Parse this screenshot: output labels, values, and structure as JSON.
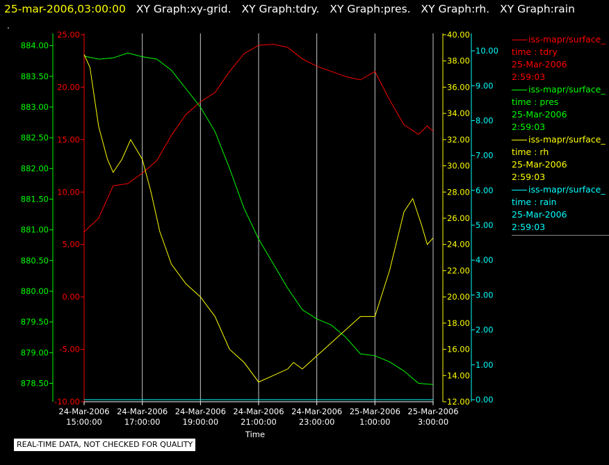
{
  "header": {
    "timestamp": "25-mar-2006,03:00:00",
    "titles": [
      "XY Graph:xy-grid.",
      "XY Graph:tdry.",
      "XY Graph:pres.",
      "XY Graph:rh.",
      "XY Graph:rain"
    ]
  },
  "marker_text": ".",
  "notice": "REAL-TIME DATA, NOT CHECKED FOR QUALITY",
  "legend": [
    {
      "line1": "iss-mapr/surface_",
      "line2": "time : tdry",
      "line3": "25-Mar-2006",
      "line4": "2:59:03",
      "color": "#ff0000"
    },
    {
      "line1": "iss-mapr/surface_",
      "line2": "time : pres",
      "line3": "25-Mar-2006",
      "line4": "2:59:03",
      "color": "#00ff00"
    },
    {
      "line1": "iss-mapr/surface_",
      "line2": "time : rh",
      "line3": "25-Mar-2006",
      "line4": "2:59:03",
      "color": "#ffff00"
    },
    {
      "line1": "iss-mapr/surface_",
      "line2": "time : rain",
      "line3": "25-Mar-2006",
      "line4": "2:59:03",
      "color": "#00ffff"
    }
  ],
  "chart_data": {
    "type": "line",
    "xlabel": "Time",
    "x_range_hours": [
      15,
      27
    ],
    "x_ticks": [
      {
        "hour": 15,
        "date": "24-Mar-2006",
        "time": "15:00:00"
      },
      {
        "hour": 17,
        "date": "24-Mar-2006",
        "time": "17:00:00"
      },
      {
        "hour": 19,
        "date": "24-Mar-2006",
        "time": "19:00:00"
      },
      {
        "hour": 21,
        "date": "24-Mar-2006",
        "time": "21:00:00"
      },
      {
        "hour": 23,
        "date": "24-Mar-2006",
        "time": "23:00:00"
      },
      {
        "hour": 25,
        "date": "25-Mar-2006",
        "time": "1:00:00"
      },
      {
        "hour": 27,
        "date": "25-Mar-2006",
        "time": "3:00:00"
      }
    ],
    "grid": "vertical",
    "axes": {
      "tdry": {
        "color": "#ff0000",
        "range": [
          -10,
          25
        ],
        "ticks": [
          "-10.00",
          "-5.00",
          "0.00",
          "5.00",
          "10.00",
          "15.00",
          "20.00",
          "25.00"
        ]
      },
      "pres": {
        "color": "#00ff00",
        "range": [
          878.2,
          884.2
        ],
        "ticks": [
          "878.50",
          "879.00",
          "879.50",
          "880.00",
          "880.50",
          "881.00",
          "881.50",
          "882.00",
          "882.50",
          "883.00",
          "883.50",
          "884.00"
        ]
      },
      "rh": {
        "color": "#ffff00",
        "range": [
          12,
          40
        ],
        "ticks": [
          "12.00",
          "14.00",
          "16.00",
          "18.00",
          "20.00",
          "22.00",
          "24.00",
          "26.00",
          "28.00",
          "30.00",
          "32.00",
          "34.00",
          "36.00",
          "38.00",
          "40.00"
        ]
      },
      "rain": {
        "color": "#00ffff",
        "range": [
          0,
          10.5
        ],
        "ticks": [
          "0.00",
          "1.00",
          "2.00",
          "3.00",
          "4.00",
          "5.00",
          "6.00",
          "7.00",
          "8.00",
          "9.00",
          "10.00"
        ]
      }
    },
    "series": [
      {
        "name": "tdry",
        "axis": "tdry",
        "color": "#ff0000",
        "x": [
          15,
          15.5,
          16,
          16.5,
          17,
          17.5,
          18,
          18.5,
          19,
          19.5,
          20,
          20.5,
          21,
          21.5,
          22,
          22.5,
          23,
          23.5,
          24,
          24.5,
          25,
          25.5,
          26,
          26.5,
          26.8,
          27
        ],
        "y": [
          6.2,
          7.5,
          10.6,
          10.8,
          11.8,
          13,
          15.4,
          17.4,
          18.6,
          19.5,
          21.5,
          23.2,
          24,
          24.1,
          23.8,
          22.7,
          22,
          21.5,
          21,
          20.7,
          21.5,
          18.8,
          16.4,
          15.5,
          16.3,
          15.8
        ]
      },
      {
        "name": "pres",
        "axis": "pres",
        "color": "#00ff00",
        "x": [
          15,
          15.5,
          16,
          16.5,
          17,
          17.5,
          18,
          18.5,
          19,
          19.5,
          20,
          20.5,
          21,
          21.5,
          22,
          22.5,
          23,
          23.5,
          24,
          24.5,
          25,
          25.5,
          26,
          26.5,
          27
        ],
        "y": [
          883.83,
          883.78,
          883.8,
          883.88,
          883.82,
          883.78,
          883.6,
          883.3,
          883.0,
          882.6,
          882.0,
          881.35,
          880.85,
          880.45,
          880.05,
          879.7,
          879.55,
          879.45,
          879.25,
          878.98,
          878.95,
          878.85,
          878.7,
          878.5,
          878.48
        ]
      },
      {
        "name": "rh",
        "axis": "rh",
        "color": "#ffff00",
        "x": [
          15,
          15.2,
          15.5,
          15.8,
          16,
          16.3,
          16.6,
          17,
          17.3,
          17.6,
          18,
          18.5,
          19,
          19.5,
          20,
          20.5,
          21,
          21.5,
          22,
          22.2,
          22.5,
          23,
          23.5,
          24,
          24.5,
          25,
          25.5,
          26,
          26.3,
          26.6,
          26.8,
          27
        ],
        "y": [
          38.5,
          37.5,
          33,
          30.5,
          29.5,
          30.5,
          32,
          30.5,
          28,
          25,
          22.5,
          21,
          20,
          18.5,
          16,
          15,
          13.5,
          14,
          14.5,
          15,
          14.5,
          15.5,
          16.5,
          17.5,
          18.5,
          18.5,
          22,
          26.5,
          27.5,
          25.5,
          24,
          24.5
        ]
      },
      {
        "name": "rain",
        "axis": "rain",
        "color": "#00ffff",
        "x": [
          15,
          27
        ],
        "y": [
          0,
          0
        ]
      }
    ]
  }
}
